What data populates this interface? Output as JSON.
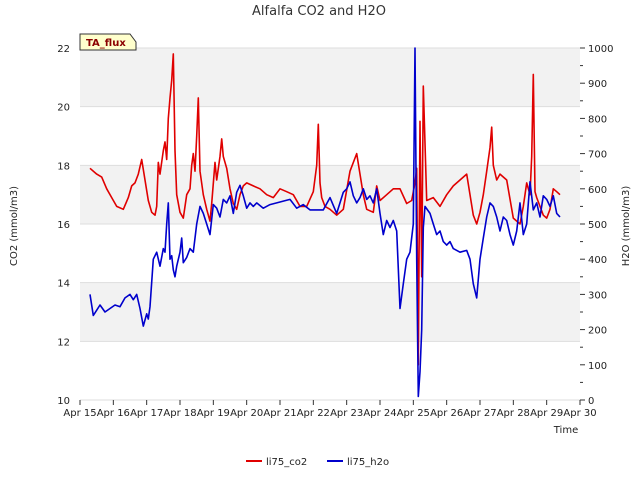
{
  "chart_data": {
    "type": "line",
    "title": "Alfalfa CO2 and H2O",
    "badge": "TA_flux",
    "xlabel": "Time",
    "ylabel_left": "CO2 (mmol/m3)",
    "ylabel_right": "H2O (mmol/m3)",
    "x_ticks": [
      "Apr 15",
      "Apr 16",
      "Apr 17",
      "Apr 18",
      "Apr 19",
      "Apr 20",
      "Apr 21",
      "Apr 22",
      "Apr 23",
      "Apr 24",
      "Apr 25",
      "Apr 26",
      "Apr 27",
      "Apr 28",
      "Apr 29",
      "Apr 30"
    ],
    "xlim": [
      15,
      30
    ],
    "ylim_left": [
      10,
      22
    ],
    "y_ticks_left": [
      10,
      12,
      14,
      16,
      18,
      20,
      22
    ],
    "ylim_right": [
      0,
      1000
    ],
    "y_ticks_right": [
      0,
      100,
      200,
      300,
      400,
      500,
      600,
      700,
      800,
      900,
      1000
    ],
    "legend": [
      {
        "name": "li75_co2",
        "color": "#e00000"
      },
      {
        "name": "li75_h2o",
        "color": "#0000cc"
      }
    ],
    "series": [
      {
        "name": "li75_co2",
        "axis": "left",
        "color": "#e00000",
        "x": [
          15.3,
          15.5,
          15.65,
          15.8,
          15.95,
          16.1,
          16.3,
          16.45,
          16.55,
          16.65,
          16.75,
          16.85,
          16.95,
          17.05,
          17.15,
          17.25,
          17.3,
          17.35,
          17.4,
          17.5,
          17.55,
          17.6,
          17.65,
          17.7,
          17.75,
          17.8,
          17.85,
          17.9,
          18.0,
          18.1,
          18.2,
          18.3,
          18.35,
          18.4,
          18.45,
          18.5,
          18.55,
          18.6,
          18.7,
          18.8,
          18.9,
          18.95,
          19.05,
          19.1,
          19.2,
          19.25,
          19.3,
          19.4,
          19.5,
          19.6,
          19.7,
          19.8,
          19.9,
          20.0,
          20.2,
          20.4,
          20.6,
          20.8,
          21.0,
          21.2,
          21.4,
          21.6,
          21.8,
          22.0,
          22.1,
          22.15,
          22.2,
          22.25,
          22.35,
          22.5,
          22.7,
          22.9,
          23.1,
          23.3,
          23.4,
          23.5,
          23.6,
          23.8,
          23.9,
          24.0,
          24.2,
          24.4,
          24.6,
          24.8,
          24.95,
          25.05,
          25.1,
          25.15,
          25.2,
          25.25,
          25.3,
          25.4,
          25.6,
          25.8,
          26.0,
          26.2,
          26.4,
          26.6,
          26.8,
          26.9,
          27.0,
          27.1,
          27.2,
          27.3,
          27.35,
          27.4,
          27.5,
          27.6,
          27.8,
          28.0,
          28.2,
          28.3,
          28.4,
          28.5,
          28.55,
          28.6,
          28.65,
          28.7,
          28.8,
          28.9,
          29.0,
          29.1,
          29.2,
          29.3,
          29.4
        ],
        "y": [
          17.9,
          17.7,
          17.6,
          17.2,
          16.9,
          16.6,
          16.5,
          16.9,
          17.3,
          17.4,
          17.7,
          18.2,
          17.5,
          16.8,
          16.4,
          16.3,
          16.6,
          18.1,
          17.7,
          18.5,
          18.8,
          18.2,
          19.6,
          20.3,
          20.9,
          21.8,
          18.5,
          17.0,
          16.4,
          16.2,
          17.0,
          17.2,
          18.0,
          18.4,
          17.8,
          19.0,
          20.3,
          17.8,
          17.0,
          16.5,
          16.1,
          16.7,
          18.1,
          17.5,
          18.3,
          18.9,
          18.3,
          17.9,
          17.2,
          16.7,
          16.5,
          17.0,
          17.3,
          17.4,
          17.3,
          17.2,
          17.0,
          16.9,
          17.2,
          17.1,
          17.0,
          16.6,
          16.6,
          17.1,
          18.0,
          19.4,
          17.4,
          16.9,
          16.6,
          16.5,
          16.3,
          16.5,
          17.8,
          18.4,
          17.7,
          17.0,
          16.5,
          16.4,
          17.3,
          16.8,
          17.0,
          17.2,
          17.2,
          16.7,
          16.8,
          17.4,
          17.9,
          11.2,
          19.5,
          14.2,
          20.7,
          16.8,
          16.9,
          16.6,
          17.0,
          17.3,
          17.5,
          17.7,
          16.3,
          16.0,
          16.4,
          17.0,
          17.8,
          18.6,
          19.3,
          18.0,
          17.5,
          17.7,
          17.5,
          16.2,
          16.0,
          16.6,
          17.4,
          17.0,
          18.3,
          21.1,
          17.1,
          16.9,
          16.6,
          16.3,
          16.2,
          16.5,
          17.2,
          17.1,
          17.0
        ]
      },
      {
        "name": "li75_h2o",
        "axis": "right",
        "color": "#0000cc",
        "x": [
          15.3,
          15.4,
          15.5,
          15.6,
          15.75,
          15.9,
          16.05,
          16.2,
          16.35,
          16.5,
          16.6,
          16.7,
          16.8,
          16.9,
          17.0,
          17.05,
          17.1,
          17.2,
          17.3,
          17.4,
          17.5,
          17.55,
          17.6,
          17.65,
          17.7,
          17.75,
          17.8,
          17.85,
          17.9,
          18.0,
          18.05,
          18.1,
          18.2,
          18.3,
          18.4,
          18.5,
          18.6,
          18.7,
          18.8,
          18.9,
          19.0,
          19.1,
          19.2,
          19.3,
          19.4,
          19.5,
          19.6,
          19.7,
          19.8,
          19.9,
          20.0,
          20.1,
          20.2,
          20.3,
          20.5,
          20.7,
          20.9,
          21.1,
          21.3,
          21.5,
          21.7,
          21.9,
          22.1,
          22.3,
          22.5,
          22.7,
          22.9,
          23.0,
          23.1,
          23.2,
          23.3,
          23.4,
          23.5,
          23.6,
          23.7,
          23.8,
          23.9,
          24.0,
          24.1,
          24.2,
          24.3,
          24.4,
          24.5,
          24.6,
          24.7,
          24.8,
          24.9,
          25.0,
          25.05,
          25.1,
          25.15,
          25.2,
          25.25,
          25.3,
          25.35,
          25.5,
          25.6,
          25.7,
          25.8,
          25.9,
          26.0,
          26.1,
          26.2,
          26.4,
          26.6,
          26.7,
          26.8,
          26.9,
          27.0,
          27.1,
          27.2,
          27.3,
          27.4,
          27.5,
          27.6,
          27.7,
          27.8,
          27.9,
          28.0,
          28.1,
          28.2,
          28.3,
          28.4,
          28.5,
          28.6,
          28.7,
          28.8,
          28.9,
          29.0,
          29.1,
          29.2,
          29.3,
          29.4
        ],
        "y": [
          300,
          240,
          255,
          270,
          250,
          260,
          270,
          265,
          290,
          300,
          285,
          300,
          260,
          210,
          245,
          230,
          265,
          400,
          420,
          380,
          430,
          420,
          500,
          560,
          400,
          410,
          370,
          350,
          380,
          420,
          460,
          390,
          405,
          430,
          420,
          500,
          550,
          530,
          500,
          470,
          555,
          545,
          520,
          570,
          560,
          580,
          530,
          590,
          610,
          580,
          545,
          560,
          550,
          560,
          545,
          555,
          560,
          565,
          570,
          545,
          555,
          540,
          540,
          540,
          575,
          530,
          590,
          600,
          620,
          580,
          560,
          575,
          600,
          570,
          580,
          560,
          600,
          530,
          470,
          510,
          490,
          510,
          480,
          260,
          330,
          400,
          420,
          500,
          1000,
          400,
          10,
          80,
          200,
          490,
          550,
          530,
          500,
          470,
          480,
          450,
          440,
          450,
          430,
          420,
          425,
          400,
          330,
          290,
          400,
          460,
          520,
          560,
          550,
          520,
          480,
          520,
          510,
          470,
          440,
          480,
          560,
          470,
          500,
          620,
          540,
          560,
          520,
          580,
          570,
          550,
          580,
          530,
          520
        ]
      }
    ]
  }
}
